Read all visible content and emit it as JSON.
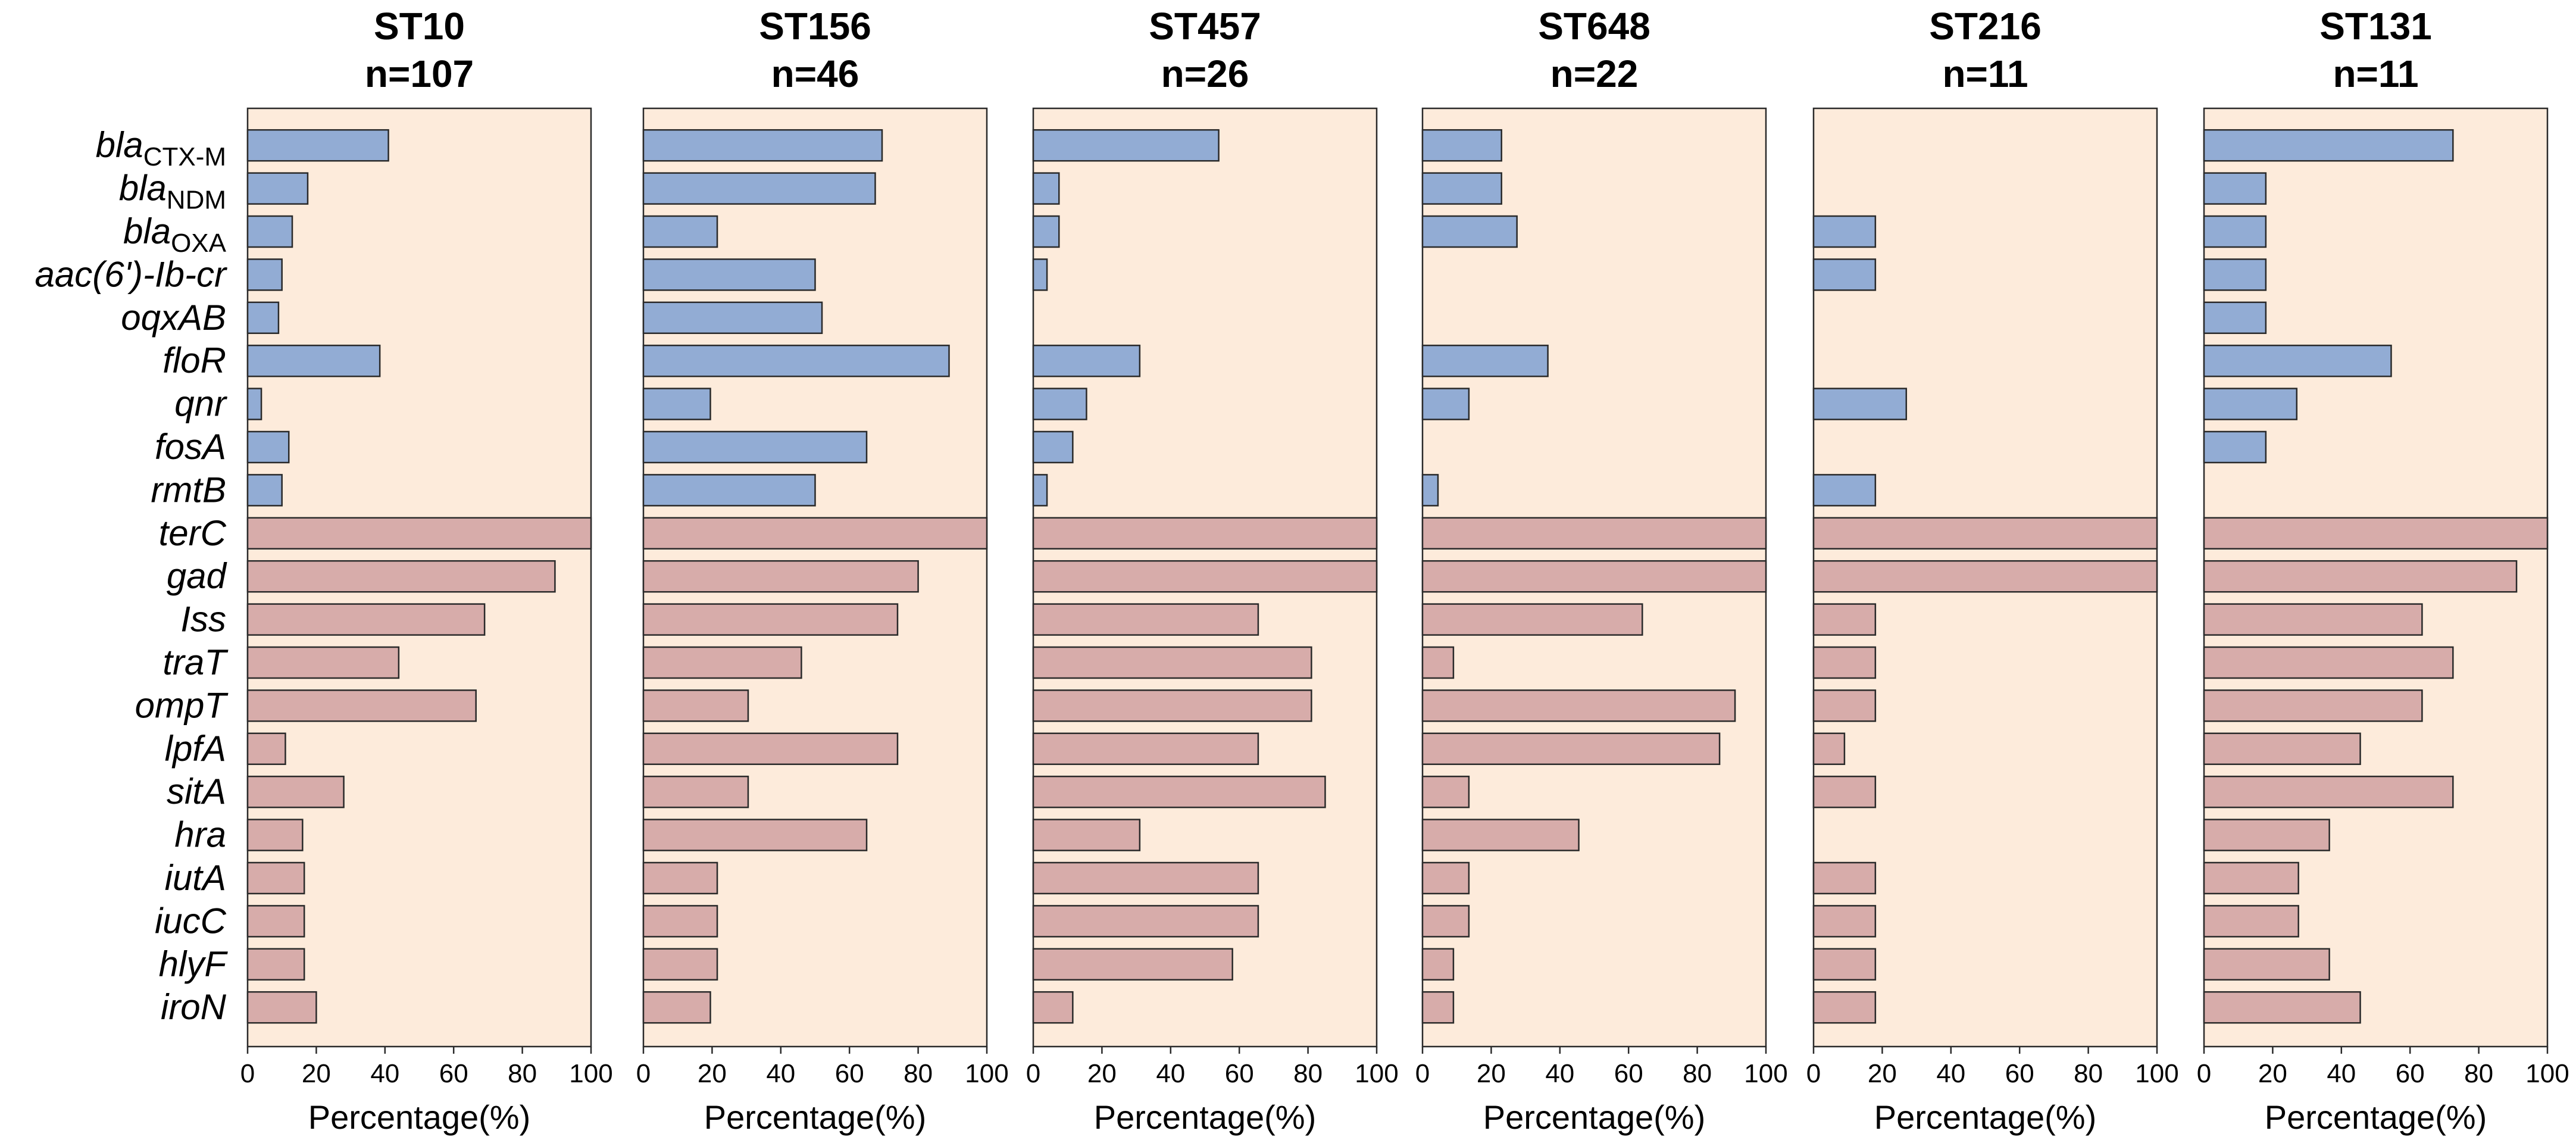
{
  "chart_data": {
    "type": "bar",
    "orientation": "horizontal",
    "xlabel": "Percentage(%)",
    "xlim": [
      0,
      100
    ],
    "xticks": [
      "0",
      "20",
      "40",
      "60",
      "80",
      "100"
    ],
    "categories": [
      {
        "base": "bla",
        "sub": "CTX-M",
        "group": "resistance"
      },
      {
        "base": "bla",
        "sub": "NDM",
        "group": "resistance"
      },
      {
        "base": "bla",
        "sub": "OXA",
        "group": "resistance"
      },
      {
        "base": "aac(6')-Ib-cr",
        "sub": "",
        "group": "resistance"
      },
      {
        "base": "oqxAB",
        "sub": "",
        "group": "resistance"
      },
      {
        "base": "floR",
        "sub": "",
        "group": "resistance"
      },
      {
        "base": "qnr",
        "sub": "",
        "group": "resistance"
      },
      {
        "base": "fosA",
        "sub": "",
        "group": "resistance"
      },
      {
        "base": "rmtB",
        "sub": "",
        "group": "resistance"
      },
      {
        "base": "terC",
        "sub": "",
        "group": "virulence"
      },
      {
        "base": "gad",
        "sub": "",
        "group": "virulence"
      },
      {
        "base": "Iss",
        "sub": "",
        "group": "virulence"
      },
      {
        "base": "traT",
        "sub": "",
        "group": "virulence"
      },
      {
        "base": "ompT",
        "sub": "",
        "group": "virulence"
      },
      {
        "base": "lpfA",
        "sub": "",
        "group": "virulence"
      },
      {
        "base": "sitA",
        "sub": "",
        "group": "virulence"
      },
      {
        "base": "hra",
        "sub": "",
        "group": "virulence"
      },
      {
        "base": "iutA",
        "sub": "",
        "group": "virulence"
      },
      {
        "base": "iucC",
        "sub": "",
        "group": "virulence"
      },
      {
        "base": "hlyF",
        "sub": "",
        "group": "virulence"
      },
      {
        "base": "iroN",
        "sub": "",
        "group": "virulence"
      }
    ],
    "colors": {
      "resistance": "#92acd4",
      "virulence": "#d7acaa",
      "background": "#fdebdb",
      "edge": "#2a2a2a"
    },
    "panels": [
      {
        "title": "ST10",
        "subtitle": "n=107",
        "values": [
          41,
          17.5,
          13,
          10,
          9,
          38.5,
          4,
          12,
          10,
          100,
          89.5,
          69,
          44,
          66.5,
          11,
          28,
          16,
          16.5,
          16.5,
          16.5,
          20
        ]
      },
      {
        "title": "ST156",
        "subtitle": "n=46",
        "values": [
          69.5,
          67.5,
          21.5,
          50,
          52,
          89,
          19.5,
          65,
          50,
          100,
          80,
          74,
          46,
          30.5,
          74,
          30.5,
          65,
          21.5,
          21.5,
          21.5,
          19.5
        ]
      },
      {
        "title": "ST457",
        "subtitle": "n=26",
        "values": [
          54,
          7.5,
          7.5,
          4,
          0,
          31,
          15.5,
          11.5,
          4,
          100,
          100,
          65.5,
          81,
          81,
          65.5,
          85,
          31,
          65.5,
          65.5,
          58,
          11.5
        ]
      },
      {
        "title": "ST648",
        "subtitle": "n=22",
        "values": [
          23,
          23,
          27.5,
          0,
          0,
          36.5,
          13.5,
          0,
          4.5,
          100,
          100,
          64,
          9,
          91,
          86.5,
          13.5,
          45.5,
          13.5,
          13.5,
          9,
          9
        ]
      },
      {
        "title": "ST216",
        "subtitle": "n=11",
        "values": [
          0,
          0,
          18,
          18,
          0,
          0,
          27,
          0,
          18,
          100,
          100,
          18,
          18,
          18,
          9,
          18,
          0,
          18,
          18,
          18,
          18
        ]
      },
      {
        "title": "ST131",
        "subtitle": "n=11",
        "values": [
          72.5,
          18,
          18,
          18,
          18,
          54.5,
          27,
          18,
          0,
          100,
          91,
          63.5,
          72.5,
          63.5,
          45.5,
          72.5,
          36.5,
          27.5,
          27.5,
          36.5,
          45.5
        ]
      }
    ]
  }
}
